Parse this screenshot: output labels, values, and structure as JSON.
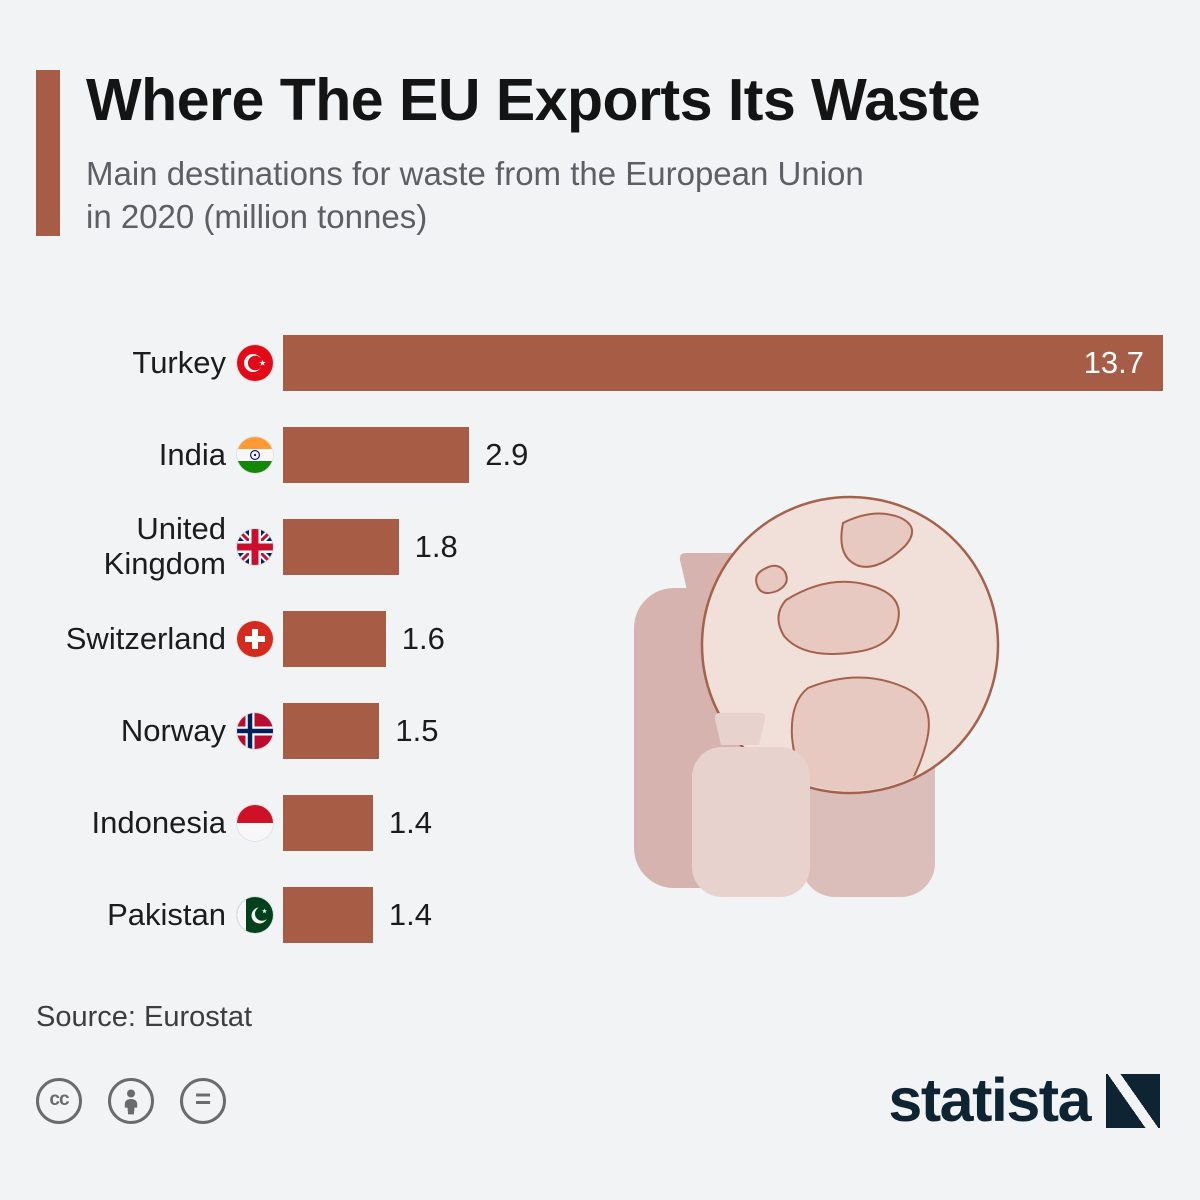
{
  "colors": {
    "background": "#f2f3f5",
    "bar": "#a65c45",
    "accent_bar": "#a65c45",
    "subtitle_gray": "#5c5f63",
    "value_inside_white": "#ffffff",
    "brand_navy": "#0e2433"
  },
  "header": {
    "title": "Where The EU Exports Its Waste",
    "subtitle": "Main destinations for waste from the European Union\nin 2020 (million tonnes)"
  },
  "chart_data": {
    "type": "bar",
    "orientation": "horizontal",
    "title": "Where The EU Exports Its Waste",
    "subtitle": "Main destinations for waste from the European Union in 2020 (million tonnes)",
    "unit": "million tonnes",
    "xlim": [
      0,
      13.7
    ],
    "grid": false,
    "legend": "none",
    "categories": [
      "Turkey",
      "India",
      "United Kingdom",
      "Switzerland",
      "Norway",
      "Indonesia",
      "Pakistan"
    ],
    "values": [
      13.7,
      2.9,
      1.8,
      1.6,
      1.5,
      1.4,
      1.4
    ],
    "rows": [
      {
        "label": "Turkey",
        "flag": "turkey",
        "value": 13.7,
        "display": "13.7",
        "value_inside": true
      },
      {
        "label": "India",
        "flag": "india",
        "value": 2.9,
        "display": "2.9",
        "value_inside": false
      },
      {
        "label": "United Kingdom",
        "flag": "uk",
        "value": 1.8,
        "display": "1.8",
        "value_inside": false
      },
      {
        "label": "Switzerland",
        "flag": "switzerland",
        "value": 1.6,
        "display": "1.6",
        "value_inside": false
      },
      {
        "label": "Norway",
        "flag": "norway",
        "value": 1.5,
        "display": "1.5",
        "value_inside": false
      },
      {
        "label": "Indonesia",
        "flag": "indonesia",
        "value": 1.4,
        "display": "1.4",
        "value_inside": false
      },
      {
        "label": "Pakistan",
        "flag": "pakistan",
        "value": 1.4,
        "display": "1.4",
        "value_inside": false
      }
    ]
  },
  "footer": {
    "source": "Source: Eurostat",
    "license": {
      "cc": "cc",
      "equals": "="
    },
    "brand": "statista"
  }
}
